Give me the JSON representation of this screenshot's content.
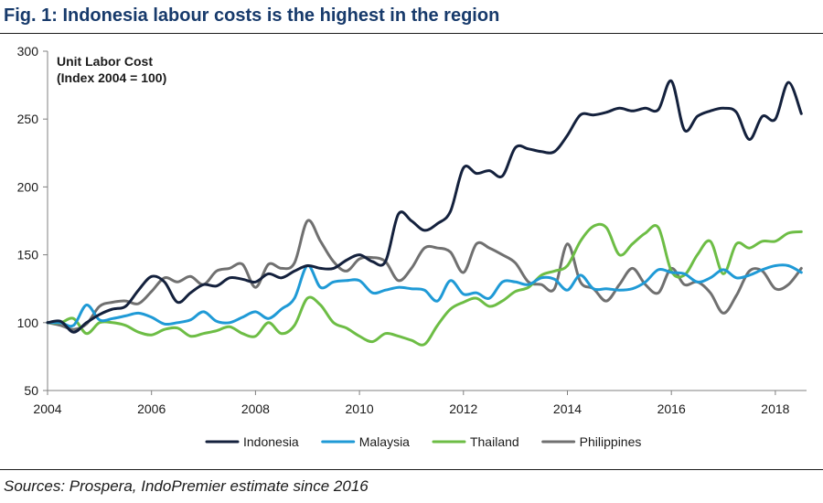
{
  "header": {
    "title": "Fig. 1:  Indonesia labour costs is the highest in the region"
  },
  "footer": {
    "source": "Sources: Prospera, IndoPremier estimate since 2016"
  },
  "chart_data": {
    "type": "line",
    "title": "Fig. 1:  Indonesia labour costs is the highest in the region",
    "ylabel": [
      "Unit Labor Cost",
      "(Index 2004 = 100)"
    ],
    "xlabel": "",
    "xlim": [
      2004,
      2018.6
    ],
    "ylim": [
      50,
      300
    ],
    "x_ticks": [
      2004,
      2006,
      2008,
      2010,
      2012,
      2014,
      2016,
      2018
    ],
    "y_ticks": [
      50,
      100,
      150,
      200,
      250,
      300
    ],
    "grid": false,
    "legend": "bottom",
    "x": [
      2004.0,
      2004.25,
      2004.5,
      2004.75,
      2005.0,
      2005.25,
      2005.5,
      2005.75,
      2006.0,
      2006.25,
      2006.5,
      2006.75,
      2007.0,
      2007.25,
      2007.5,
      2007.75,
      2008.0,
      2008.25,
      2008.5,
      2008.75,
      2009.0,
      2009.25,
      2009.5,
      2009.75,
      2010.0,
      2010.25,
      2010.5,
      2010.75,
      2011.0,
      2011.25,
      2011.5,
      2011.75,
      2012.0,
      2012.25,
      2012.5,
      2012.75,
      2013.0,
      2013.25,
      2013.5,
      2013.75,
      2014.0,
      2014.25,
      2014.5,
      2014.75,
      2015.0,
      2015.25,
      2015.5,
      2015.75,
      2016.0,
      2016.25,
      2016.5,
      2016.75,
      2017.0,
      2017.25,
      2017.5,
      2017.75,
      2018.0,
      2018.25,
      2018.5
    ],
    "series": [
      {
        "name": "Indonesia",
        "color": "#14213d",
        "values": [
          100,
          101,
          93,
          100,
          106,
          110,
          112,
          124,
          134,
          130,
          115,
          122,
          128,
          127,
          133,
          132,
          130,
          136,
          133,
          138,
          142,
          140,
          140,
          146,
          150,
          145,
          145,
          180,
          175,
          168,
          173,
          182,
          214,
          210,
          212,
          208,
          229,
          228,
          226,
          226,
          238,
          253,
          253,
          255,
          258,
          256,
          258,
          257,
          278,
          242,
          252,
          256,
          258,
          255,
          235,
          252,
          250,
          277,
          254
        ],
        "values_note_omit": null
      },
      {
        "name": "Malaysia",
        "color": "#1f9ad6",
        "values": [
          100,
          100,
          98,
          113,
          102,
          103,
          105,
          107,
          104,
          99,
          100,
          102,
          108,
          101,
          100,
          104,
          108,
          103,
          110,
          118,
          142,
          126,
          130,
          131,
          131,
          122,
          124,
          126,
          125,
          124,
          116,
          131,
          121,
          122,
          118,
          130,
          130,
          128,
          133,
          132,
          124,
          135,
          125,
          125,
          124,
          125,
          130,
          139,
          137,
          136,
          130,
          133,
          139,
          133,
          135,
          139,
          142,
          142,
          137
        ]
      },
      {
        "name": "Thailand",
        "color": "#6dbd45",
        "values": [
          100,
          100,
          103,
          92,
          100,
          100,
          98,
          93,
          91,
          95,
          96,
          90,
          92,
          94,
          97,
          92,
          90,
          100,
          92,
          98,
          118,
          113,
          100,
          96,
          90,
          86,
          92,
          90,
          87,
          84,
          98,
          110,
          115,
          118,
          112,
          116,
          123,
          126,
          135,
          138,
          142,
          160,
          171,
          170,
          150,
          158,
          166,
          170,
          138,
          135,
          150,
          160,
          136,
          158,
          155,
          160,
          160,
          166,
          167
        ]
      },
      {
        "name": "Philippines",
        "color": "#707070",
        "values": [
          100,
          98,
          95,
          99,
          112,
          115,
          116,
          114,
          123,
          133,
          130,
          134,
          128,
          138,
          140,
          143,
          126,
          143,
          140,
          144,
          175,
          160,
          145,
          138,
          147,
          148,
          145,
          131,
          140,
          155,
          155,
          152,
          137,
          158,
          155,
          150,
          144,
          130,
          128,
          125,
          158,
          130,
          125,
          116,
          128,
          140,
          128,
          122,
          140,
          128,
          130,
          122,
          107,
          120,
          138,
          138,
          125,
          128,
          140
        ]
      }
    ]
  }
}
